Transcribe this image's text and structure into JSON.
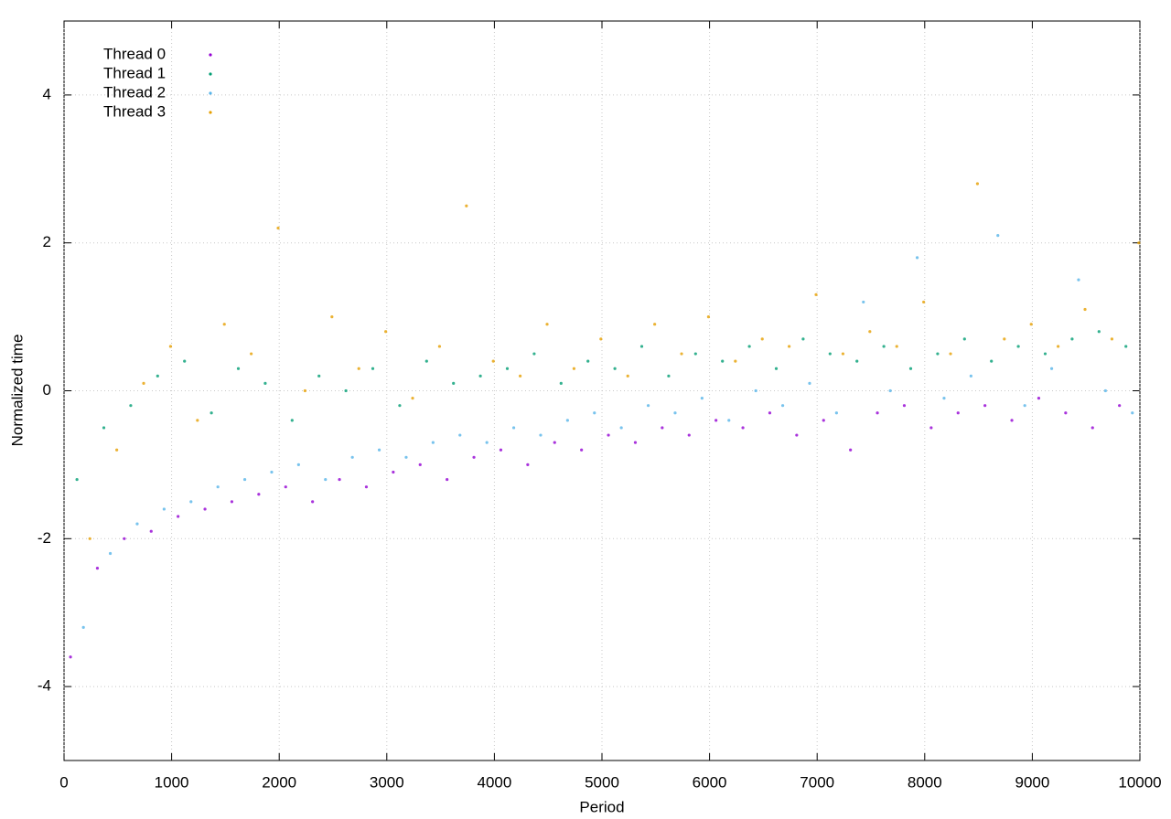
{
  "chart_data": {
    "type": "scatter",
    "x_label": "Period",
    "y_label": "Normalized time",
    "xlim": [
      0,
      10000
    ],
    "xticks": [
      0,
      1000,
      2000,
      3000,
      4000,
      5000,
      6000,
      7000,
      8000,
      9000,
      10000
    ],
    "ylim": [
      -5,
      5
    ],
    "yticks": [
      -4,
      -2,
      0,
      2,
      4
    ],
    "grid": true,
    "legend": "top-left",
    "series": [
      {
        "name": "Thread 0",
        "color": "#9400d3",
        "x": [
          60,
          310,
          560,
          810,
          1060,
          1310,
          1560,
          1810,
          2060,
          2310,
          2560,
          2810,
          3060,
          3310,
          3560,
          3810,
          4060,
          4310,
          4560,
          4810,
          5060,
          5310,
          5560,
          5810,
          6060,
          6310,
          6560,
          6810,
          7060,
          7310,
          7560,
          7810,
          8060,
          8310,
          8560,
          8810,
          9060,
          9310,
          9560,
          9810
        ],
        "values": [
          -3.6,
          -2.4,
          -2.0,
          -1.9,
          -1.7,
          -1.6,
          -1.5,
          -1.4,
          -1.3,
          -1.5,
          -1.2,
          -1.3,
          -1.1,
          -1.0,
          -1.2,
          -0.9,
          -0.8,
          -1.0,
          -0.7,
          -0.8,
          -0.6,
          -0.7,
          -0.5,
          -0.6,
          -0.4,
          -0.5,
          -0.3,
          -0.6,
          -0.4,
          -0.8,
          -0.3,
          -0.2,
          -0.5,
          -0.3,
          -0.2,
          -0.4,
          -0.1,
          -0.3,
          -0.5,
          -0.2
        ]
      },
      {
        "name": "Thread 1",
        "color": "#009e73",
        "x": [
          120,
          370,
          620,
          870,
          1120,
          1370,
          1620,
          1870,
          2120,
          2370,
          2620,
          2870,
          3120,
          3370,
          3620,
          3870,
          4120,
          4370,
          4620,
          4870,
          5120,
          5370,
          5620,
          5870,
          6120,
          6370,
          6620,
          6870,
          7120,
          7370,
          7620,
          7870,
          8120,
          8370,
          8620,
          8870,
          9120,
          9370,
          9620,
          9870
        ],
        "values": [
          -1.2,
          -0.5,
          -0.2,
          0.2,
          0.4,
          -0.3,
          0.3,
          0.1,
          -0.4,
          0.2,
          0.0,
          0.3,
          -0.2,
          0.4,
          0.1,
          0.2,
          0.3,
          0.5,
          0.1,
          0.4,
          0.3,
          0.6,
          0.2,
          0.5,
          0.4,
          0.6,
          0.3,
          0.7,
          0.5,
          0.4,
          0.6,
          0.3,
          0.5,
          0.7,
          0.4,
          0.6,
          0.5,
          0.7,
          0.8,
          0.6
        ]
      },
      {
        "name": "Thread 2",
        "color": "#56b4e9",
        "x": [
          180,
          430,
          680,
          930,
          1180,
          1430,
          1680,
          1930,
          2180,
          2430,
          2680,
          2930,
          3180,
          3430,
          3680,
          3930,
          4180,
          4430,
          4680,
          4930,
          5180,
          5430,
          5680,
          5930,
          6180,
          6430,
          6680,
          6930,
          7180,
          7430,
          7680,
          7930,
          8180,
          8430,
          8680,
          8930,
          9180,
          9430,
          9680,
          9930
        ],
        "values": [
          -3.2,
          -2.2,
          -1.8,
          -1.6,
          -1.5,
          -1.3,
          -1.2,
          -1.1,
          -1.0,
          -1.2,
          -0.9,
          -0.8,
          -0.9,
          -0.7,
          -0.6,
          -0.7,
          -0.5,
          -0.6,
          -0.4,
          -0.3,
          -0.5,
          -0.2,
          -0.3,
          -0.1,
          -0.4,
          0.0,
          -0.2,
          0.1,
          -0.3,
          1.2,
          0.0,
          1.8,
          -0.1,
          0.2,
          2.1,
          -0.2,
          0.3,
          1.5,
          0.0,
          -0.3
        ]
      },
      {
        "name": "Thread 3",
        "color": "#e69f00",
        "x": [
          240,
          490,
          740,
          990,
          1240,
          1490,
          1740,
          1990,
          2240,
          2490,
          2740,
          2990,
          3240,
          3490,
          3740,
          3990,
          4240,
          4490,
          4740,
          4990,
          5240,
          5490,
          5740,
          5990,
          6240,
          6490,
          6740,
          6990,
          7240,
          7490,
          7740,
          7990,
          8240,
          8490,
          8740,
          8990,
          9240,
          9490,
          9740,
          9990
        ],
        "values": [
          -2.0,
          -0.8,
          0.1,
          0.6,
          -0.4,
          0.9,
          0.5,
          2.2,
          0.0,
          1.0,
          0.3,
          0.8,
          -0.1,
          0.6,
          2.5,
          0.4,
          0.2,
          0.9,
          0.3,
          0.7,
          0.2,
          0.9,
          0.5,
          1.0,
          0.4,
          0.7,
          0.6,
          1.3,
          0.5,
          0.8,
          0.6,
          1.2,
          0.5,
          2.8,
          0.7,
          0.9,
          0.6,
          1.1,
          0.7,
          2.0
        ]
      }
    ]
  }
}
